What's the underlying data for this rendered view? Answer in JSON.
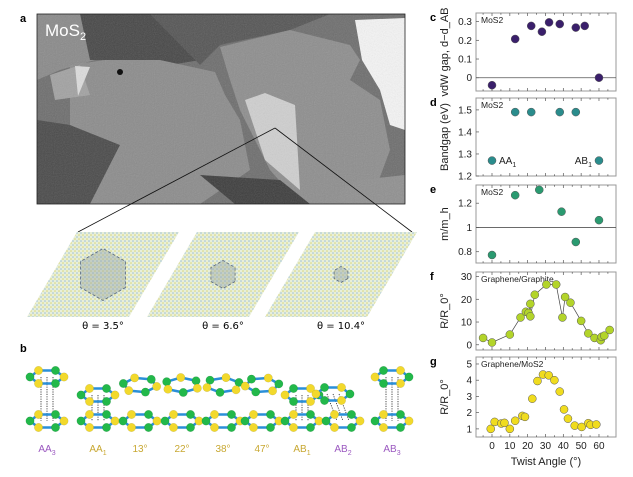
{
  "panel_labels": {
    "a": "a",
    "b": "b",
    "c": "c",
    "d": "d",
    "e": "e",
    "f": "f",
    "g": "g"
  },
  "micrograph": {
    "label": "MoS",
    "label_sub": "2"
  },
  "moire": [
    {
      "label": "θ = 3.5°",
      "twist": 3.5
    },
    {
      "label": "θ = 6.6°",
      "twist": 6.6
    },
    {
      "label": "θ = 10.4°",
      "twist": 10.4
    }
  ],
  "stackings": [
    {
      "label": "AA",
      "sub": "3",
      "color": "#9b59c0",
      "type": "AA3"
    },
    {
      "label": "AA",
      "sub": "1",
      "color": "#c8a832",
      "type": "AA1"
    },
    {
      "label": "13°",
      "sub": "",
      "color": "#c8a832",
      "type": "twist"
    },
    {
      "label": "22°",
      "sub": "",
      "color": "#c8a832",
      "type": "twist"
    },
    {
      "label": "38°",
      "sub": "",
      "color": "#c8a832",
      "type": "twist"
    },
    {
      "label": "47°",
      "sub": "",
      "color": "#c8a832",
      "type": "twist"
    },
    {
      "label": "AB",
      "sub": "1",
      "color": "#c8a832",
      "type": "AB1"
    },
    {
      "label": "AB",
      "sub": "2",
      "color": "#9b59c0",
      "type": "AB2"
    },
    {
      "label": "AB",
      "sub": "3",
      "color": "#9b59c0",
      "type": "AB3"
    }
  ],
  "colors": {
    "sulfur": "#f2d92c",
    "metal": "#22b84a",
    "bond": "#2a8fd8"
  },
  "chart_data": [
    {
      "id": "c",
      "type": "scatter",
      "inset_label": "MoS2",
      "ylabel": "vdW gap, d−d_AB",
      "ylim": [
        -0.071,
        0.346
      ],
      "yticks": [
        0,
        0.1,
        0.2,
        0.3
      ],
      "hline": 0,
      "color": "#3a1f6b",
      "x": [
        0,
        13,
        22,
        28,
        32,
        38,
        47,
        52,
        60
      ],
      "y": [
        -0.04,
        0.207,
        0.277,
        0.246,
        0.296,
        0.287,
        0.268,
        0.277,
        0.0
      ]
    },
    {
      "id": "d",
      "type": "scatter",
      "inset_label": "MoS2",
      "ylabel": "Bandgap (eV)",
      "ylim": [
        1.2,
        1.554
      ],
      "yticks": [
        1.2,
        1.3,
        1.4,
        1.5
      ],
      "color": "#2a8c8c",
      "x": [
        0,
        13,
        22,
        38,
        47,
        60
      ],
      "y": [
        1.27,
        1.49,
        1.49,
        1.49,
        1.49,
        1.27
      ],
      "annotations": [
        {
          "text": "AA",
          "sub": "1",
          "x": 0,
          "y": 1.27
        },
        {
          "text": "AB",
          "sub": "1",
          "x": 60,
          "y": 1.27
        }
      ]
    },
    {
      "id": "e",
      "type": "scatter",
      "inset_label": "MoS2",
      "ylabel": "m/m_h",
      "ylim": [
        0.707,
        1.35
      ],
      "yticks": [
        0.8,
        1,
        1.2
      ],
      "hline": 1,
      "color": "#2a9a70",
      "x": [
        0,
        13,
        26.5,
        39,
        47,
        60
      ],
      "y": [
        0.773,
        1.266,
        1.31,
        1.13,
        0.88,
        1.06
      ]
    },
    {
      "id": "f",
      "type": "line",
      "inset_label": "Graphene/Graphite",
      "ylabel": "R/R_0°",
      "ylim": [
        -2.3,
        32
      ],
      "yticks": [
        0,
        10,
        20,
        30
      ],
      "color": "#b3d42a",
      "x": [
        -5,
        0,
        10,
        16,
        19,
        20.5,
        21.5,
        21.5,
        24,
        30.5,
        36,
        39.5,
        41,
        44,
        50,
        54,
        57.5,
        61,
        61.5,
        63,
        66
      ],
      "y": [
        3,
        1,
        4.5,
        12,
        14.5,
        14,
        18,
        12.5,
        22,
        26.5,
        26.5,
        12,
        21,
        18.5,
        10.5,
        5,
        3,
        2,
        3.5,
        4,
        6.5
      ]
    },
    {
      "id": "g",
      "type": "scatter",
      "inset_label": "Graphene/MoS2",
      "ylabel": "R/R_0°",
      "ylim": [
        0.5,
        5.43
      ],
      "yticks": [
        1,
        2,
        3,
        4,
        5
      ],
      "color": "#f0dc1e",
      "x": [
        -0.7,
        1.5,
        5.2,
        7,
        10,
        13,
        17,
        18.5,
        22.6,
        25.5,
        28.6,
        31.8,
        35,
        38,
        40.4,
        42.6,
        46.4,
        50.3,
        54,
        55.3,
        58.5
      ],
      "y": [
        1.0,
        1.43,
        1.33,
        1.37,
        1.0,
        1.5,
        1.8,
        1.74,
        2.86,
        3.95,
        4.35,
        4.3,
        4.0,
        3.3,
        2.2,
        1.63,
        1.2,
        1.12,
        1.35,
        1.25,
        1.27
      ],
      "xlabel": "Twist Angle (°)",
      "xticks": [
        0,
        10,
        20,
        30,
        40,
        50,
        60
      ]
    }
  ]
}
